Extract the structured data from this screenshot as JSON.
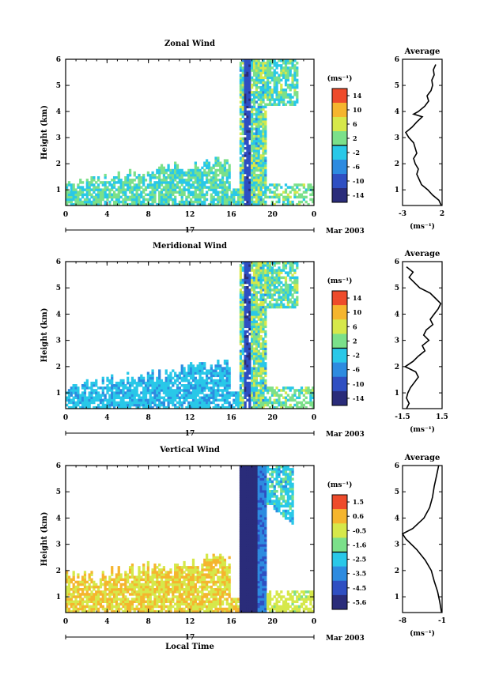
{
  "chart_data": [
    {
      "type": "heatmap",
      "title": "Zonal Wind",
      "ylabel": "Height (km)",
      "xlabel": "",
      "x_ticks": [
        "0",
        "4",
        "8",
        "12",
        "16",
        "20",
        "0"
      ],
      "y_ticks": [
        "1",
        "2",
        "3",
        "4",
        "5",
        "6"
      ],
      "xlim": [
        0,
        24
      ],
      "ylim": [
        0.4,
        6.0
      ],
      "date_day": "17",
      "date_label": "Mar 2003",
      "colorbar": {
        "unit": "(ms⁻¹)",
        "ticks": [
          "14",
          "10",
          "6",
          "2",
          "-2",
          "-6",
          "-10",
          "-14"
        ],
        "range": [
          -16,
          16
        ]
      },
      "average": {
        "title": "Average",
        "x_ticks": [
          "-3",
          "2"
        ],
        "xlim": [
          -3,
          2
        ],
        "y_ticks": [
          "1",
          "2",
          "3",
          "4",
          "5",
          "6"
        ],
        "unit": "(ms⁻¹)",
        "profile": [
          [
            0.4,
            1.9
          ],
          [
            0.6,
            1.6
          ],
          [
            0.8,
            0.8
          ],
          [
            1.0,
            0.2
          ],
          [
            1.2,
            -0.6
          ],
          [
            1.4,
            -0.9
          ],
          [
            1.6,
            -1.2
          ],
          [
            1.8,
            -1.0
          ],
          [
            2.0,
            -1.4
          ],
          [
            2.2,
            -1.6
          ],
          [
            2.4,
            -1.2
          ],
          [
            2.6,
            -1.4
          ],
          [
            2.8,
            -1.6
          ],
          [
            3.0,
            -2.2
          ],
          [
            3.2,
            -2.6
          ],
          [
            3.4,
            -1.8
          ],
          [
            3.6,
            -1.2
          ],
          [
            3.8,
            -0.5
          ],
          [
            3.9,
            -1.6
          ],
          [
            4.0,
            -1.0
          ],
          [
            4.2,
            -0.2
          ],
          [
            4.4,
            0.3
          ],
          [
            4.6,
            0.1
          ],
          [
            4.8,
            0.6
          ],
          [
            5.0,
            0.8
          ],
          [
            5.2,
            0.7
          ],
          [
            5.4,
            1.0
          ],
          [
            5.6,
            0.9
          ],
          [
            5.8,
            1.2
          ]
        ]
      }
    },
    {
      "type": "heatmap",
      "title": "Meridional Wind",
      "ylabel": "Height (km)",
      "xlabel": "",
      "x_ticks": [
        "0",
        "4",
        "8",
        "12",
        "16",
        "20",
        "0"
      ],
      "y_ticks": [
        "1",
        "2",
        "3",
        "4",
        "5",
        "6"
      ],
      "xlim": [
        0,
        24
      ],
      "ylim": [
        0.4,
        6.0
      ],
      "date_day": "17",
      "date_label": "Mar 2003",
      "colorbar": {
        "unit": "(ms⁻¹)",
        "ticks": [
          "14",
          "10",
          "6",
          "2",
          "-2",
          "-6",
          "-10",
          "-14"
        ],
        "range": [
          -16,
          16
        ]
      },
      "average": {
        "title": "Average",
        "x_ticks": [
          "-1.5",
          "1.5"
        ],
        "xlim": [
          -1.5,
          1.5
        ],
        "y_ticks": [
          "1",
          "2",
          "3",
          "4",
          "5",
          "6"
        ],
        "unit": "(ms⁻¹)",
        "profile": [
          [
            0.4,
            -1.2
          ],
          [
            0.6,
            -1.0
          ],
          [
            0.8,
            -1.2
          ],
          [
            1.0,
            -1.1
          ],
          [
            1.2,
            -0.9
          ],
          [
            1.4,
            -0.6
          ],
          [
            1.6,
            -0.3
          ],
          [
            1.8,
            -0.5
          ],
          [
            2.0,
            -1.3
          ],
          [
            2.2,
            -0.7
          ],
          [
            2.4,
            -0.3
          ],
          [
            2.6,
            0.2
          ],
          [
            2.8,
            0.0
          ],
          [
            3.0,
            0.5
          ],
          [
            3.2,
            0.1
          ],
          [
            3.4,
            0.3
          ],
          [
            3.6,
            0.8
          ],
          [
            3.8,
            0.6
          ],
          [
            4.0,
            0.9
          ],
          [
            4.2,
            1.2
          ],
          [
            4.4,
            1.4
          ],
          [
            4.6,
            1.0
          ],
          [
            4.8,
            0.6
          ],
          [
            5.0,
            -0.2
          ],
          [
            5.2,
            -0.6
          ],
          [
            5.4,
            -1.0
          ],
          [
            5.6,
            -0.7
          ],
          [
            5.8,
            -1.2
          ]
        ]
      }
    },
    {
      "type": "heatmap",
      "title": "Vertical Wind",
      "ylabel": "Height (km)",
      "xlabel": "Local Time",
      "x_ticks": [
        "0",
        "4",
        "8",
        "12",
        "16",
        "20",
        "0"
      ],
      "y_ticks": [
        "1",
        "2",
        "3",
        "4",
        "5",
        "6"
      ],
      "xlim": [
        0,
        24
      ],
      "ylim": [
        0.4,
        6.0
      ],
      "date_day": "17",
      "date_label": "Mar 2003",
      "colorbar": {
        "unit": "(ms⁻¹)",
        "ticks": [
          "1.5",
          "0.6",
          "-0.5",
          "-1.6",
          "-2.5",
          "-3.5",
          "-4.5",
          "-5.6"
        ],
        "range": [
          -6.0,
          2.0
        ]
      },
      "average": {
        "title": "Average",
        "x_ticks": [
          "-8",
          "-1"
        ],
        "xlim": [
          -8,
          -1
        ],
        "y_ticks": [
          "1",
          "2",
          "3",
          "4",
          "5",
          "6"
        ],
        "unit": "(ms⁻¹)",
        "profile": [
          [
            0.4,
            -1.1
          ],
          [
            0.8,
            -1.4
          ],
          [
            1.2,
            -1.8
          ],
          [
            1.6,
            -2.4
          ],
          [
            2.0,
            -2.9
          ],
          [
            2.4,
            -4.0
          ],
          [
            2.8,
            -5.5
          ],
          [
            3.2,
            -7.4
          ],
          [
            3.4,
            -8.0
          ],
          [
            3.6,
            -6.2
          ],
          [
            4.0,
            -4.2
          ],
          [
            4.4,
            -3.2
          ],
          [
            4.8,
            -2.7
          ],
          [
            5.2,
            -2.4
          ],
          [
            5.6,
            -2.0
          ],
          [
            6.0,
            -1.6
          ]
        ]
      }
    }
  ]
}
